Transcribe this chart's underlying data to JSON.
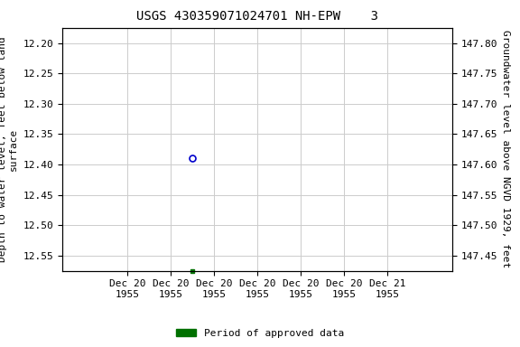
{
  "title": "USGS 430359071024701 NH-EPW    3",
  "ylabel_left": "Depth to water level, feet below land\nsurface",
  "ylabel_right": "Groundwater level above NGVD 1929, feet",
  "ylim_left": [
    12.575,
    12.175
  ],
  "ylim_right": [
    147.425,
    147.825
  ],
  "yticks_left": [
    12.2,
    12.25,
    12.3,
    12.35,
    12.4,
    12.45,
    12.5,
    12.55
  ],
  "yticks_right": [
    147.8,
    147.75,
    147.7,
    147.65,
    147.6,
    147.55,
    147.5,
    147.45
  ],
  "data_point_x_hours": 12,
  "data_point_y": 12.39,
  "data_point_color": "#0000cc",
  "data_point_markersize": 5,
  "green_point_x_hours": 12,
  "green_point_y": 12.575,
  "green_point_color": "#007000",
  "green_point_markersize": 3,
  "xaxis_start_hours": 0,
  "xaxis_end_hours": 36,
  "xtick_hours": [
    6,
    10,
    14,
    18,
    22,
    26,
    30
  ],
  "xtick_labels": [
    "Dec 20\n1955",
    "Dec 20\n1955",
    "Dec 20\n1955",
    "Dec 20\n1955",
    "Dec 20\n1955",
    "Dec 20\n1955",
    "Dec 21\n1955"
  ],
  "grid_color": "#cccccc",
  "background_color": "#ffffff",
  "legend_label": "Period of approved data",
  "legend_color": "#007000",
  "title_fontsize": 10,
  "label_fontsize": 8,
  "tick_fontsize": 8
}
